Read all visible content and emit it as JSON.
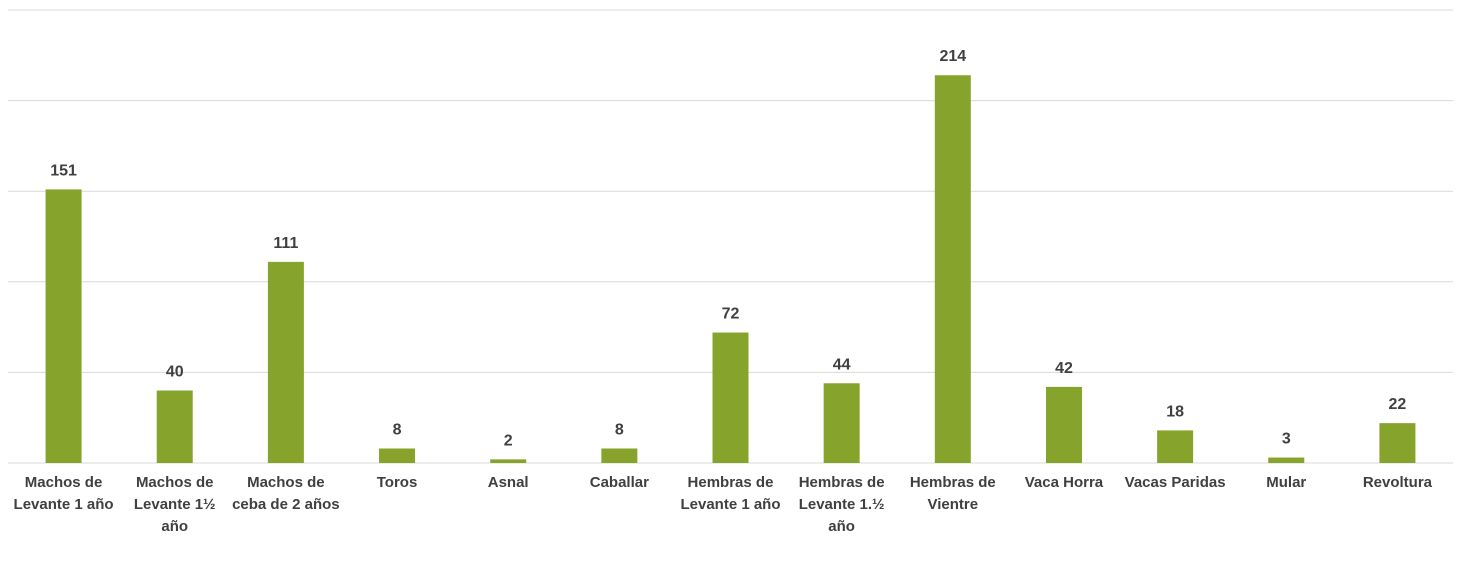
{
  "chart_data": {
    "type": "bar",
    "categories": [
      "Machos de Levante 1 año",
      "Machos de Levante 1½ año",
      "Machos de ceba de 2 años",
      "Toros",
      "Asnal",
      "Caballar",
      "Hembras de Levante 1 año",
      "Hembras de Levante 1.½ año",
      "Hembras de Vientre",
      "Vaca Horra",
      "Vacas Paridas",
      "Mular",
      "Revoltura"
    ],
    "values": [
      151,
      40,
      111,
      8,
      2,
      8,
      72,
      44,
      214,
      42,
      18,
      3,
      22
    ],
    "color": "#86a42b",
    "ylim": [
      0,
      250
    ],
    "yticks": [
      0,
      50,
      100,
      150,
      200,
      250
    ],
    "grid": true
  }
}
